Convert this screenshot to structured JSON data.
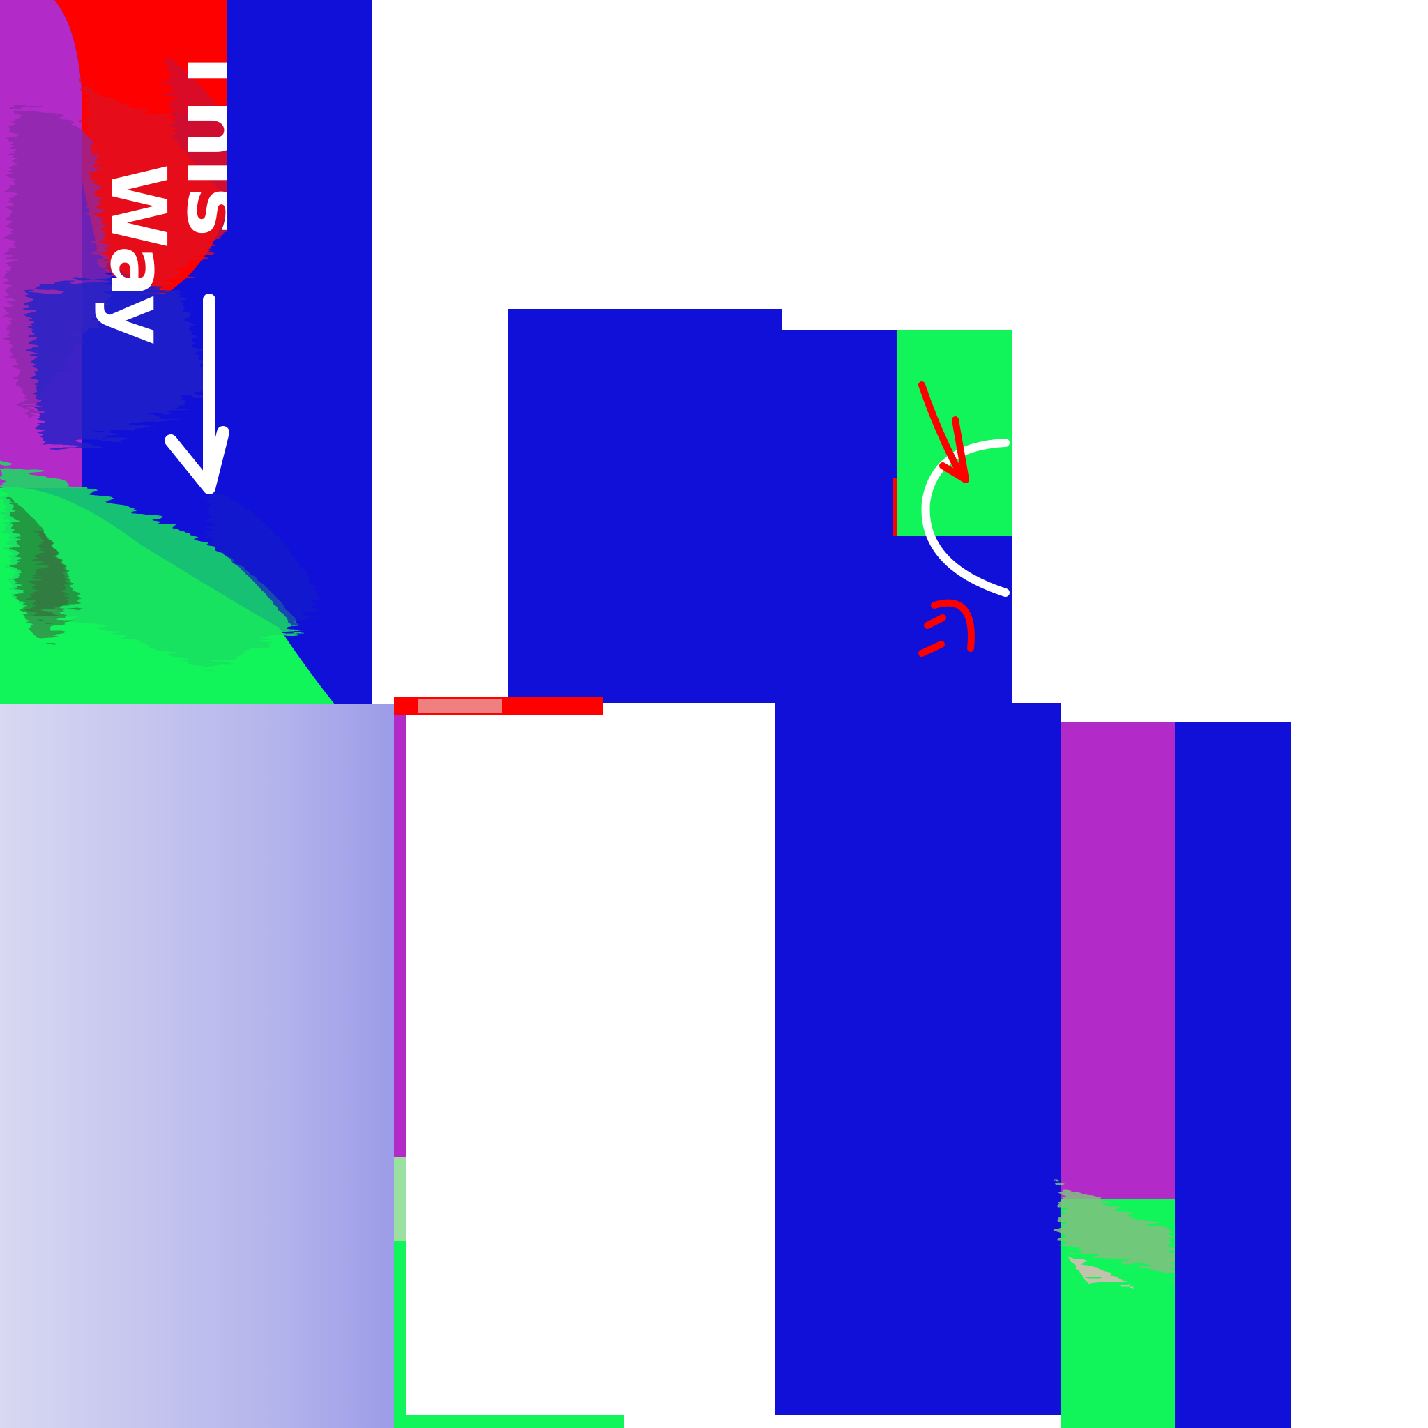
{
  "canvas": {
    "background": "#ffffff"
  },
  "colors": {
    "blue": "#1010d8",
    "purple": "#b22ac8",
    "red": "#ff0000",
    "green": "#12f55a",
    "dark_green": "#2a7a38",
    "white": "#ffffff",
    "lavender_light": "#d8d8f2",
    "lavender_dark": "#9c9ce8",
    "pink": "#f0b4c0"
  },
  "panel_top_left": {
    "label_line_1": "This",
    "label_line_2": "Way",
    "arrow_icon": "down-arrow-icon"
  },
  "panel_center": {
    "curve_icon": "white-curve-icon",
    "arrow_icon": "red-arrow-icon",
    "face_icon": "red-smile-icon"
  }
}
